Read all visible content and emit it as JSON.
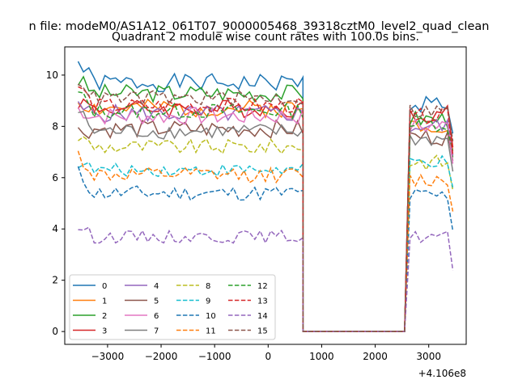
{
  "suptitle": "n file: modeM0/AS1A12_061T07_9000005468_39318cztM0_level2_quad_clean",
  "chart_data": {
    "type": "line",
    "title": "Quadrant 2 module wise count rates with 100.0s bins.",
    "xlabel": "",
    "ylabel": "",
    "x_offset_label": "+4.106e8",
    "xlim": [
      -3800,
      3700
    ],
    "ylim": [
      -0.5,
      11.1
    ],
    "x_ticks": [
      -3000,
      -2000,
      -1000,
      0,
      1000,
      2000,
      3000
    ],
    "x_tick_labels": [
      "−3000",
      "−2000",
      "−1000",
      "0",
      "1000",
      "2000",
      "3000"
    ],
    "y_ticks": [
      0,
      2,
      4,
      6,
      8,
      10
    ],
    "y_tick_labels": [
      "0",
      "2",
      "4",
      "6",
      "8",
      "10"
    ],
    "grid": false,
    "legend_placement": "lower-left",
    "legend_columns": 4,
    "segments": {
      "early": {
        "start": -3550,
        "step": 100,
        "count": 43
      },
      "gap_levels": [
        0.0,
        0.0
      ],
      "gap_x": [
        650,
        2550
      ],
      "late": {
        "start": 2650,
        "step": 100,
        "count": 9
      }
    },
    "series": [
      {
        "name": "0",
        "color": "#1f77b4",
        "dash": "solid",
        "base": 9.7,
        "pre": 10.5,
        "amp": 0.35,
        "late_base": 8.9,
        "seed": 1
      },
      {
        "name": "1",
        "color": "#ff7f0e",
        "dash": "solid",
        "base": 8.7,
        "pre": 9.0,
        "amp": 0.35,
        "late_base": 8.1,
        "seed": 2
      },
      {
        "name": "2",
        "color": "#2ca02c",
        "dash": "solid",
        "base": 9.3,
        "pre": 9.8,
        "amp": 0.35,
        "late_base": 8.3,
        "seed": 3
      },
      {
        "name": "3",
        "color": "#d62728",
        "dash": "solid",
        "base": 8.7,
        "pre": 9.0,
        "amp": 0.35,
        "late_base": 8.5,
        "seed": 4
      },
      {
        "name": "4",
        "color": "#9467bd",
        "dash": "solid",
        "base": 8.5,
        "pre": 8.7,
        "amp": 0.35,
        "late_base": 8.0,
        "seed": 5
      },
      {
        "name": "5",
        "color": "#8c564b",
        "dash": "solid",
        "base": 7.9,
        "pre": 7.8,
        "amp": 0.35,
        "late_base": 7.6,
        "seed": 6
      },
      {
        "name": "6",
        "color": "#e377c2",
        "dash": "solid",
        "base": 8.4,
        "pre": 8.7,
        "amp": 0.35,
        "late_base": 8.0,
        "seed": 7
      },
      {
        "name": "7",
        "color": "#7f7f7f",
        "dash": "solid",
        "base": 7.8,
        "pre": 8.6,
        "amp": 0.3,
        "late_base": 7.5,
        "seed": 8
      },
      {
        "name": "8",
        "color": "#bcbd22",
        "dash": "dashed",
        "base": 7.2,
        "pre": 7.6,
        "amp": 0.3,
        "late_base": 6.6,
        "seed": 9
      },
      {
        "name": "9",
        "color": "#17becf",
        "dash": "dashed",
        "base": 6.3,
        "pre": 6.6,
        "amp": 0.25,
        "late_base": 6.6,
        "seed": 10
      },
      {
        "name": "10",
        "color": "#1f77b4",
        "dash": "dashed",
        "base": 5.4,
        "pre": 6.2,
        "amp": 0.3,
        "late_base": 5.3,
        "seed": 11
      },
      {
        "name": "11",
        "color": "#ff7f0e",
        "dash": "dashed",
        "base": 6.1,
        "pre": 6.9,
        "amp": 0.3,
        "late_base": 5.9,
        "seed": 12
      },
      {
        "name": "12",
        "color": "#2ca02c",
        "dash": "dashed",
        "base": 8.6,
        "pre": 9.3,
        "amp": 0.3,
        "late_base": 8.1,
        "seed": 13
      },
      {
        "name": "13",
        "color": "#d62728",
        "dash": "dashed",
        "base": 8.8,
        "pre": 9.6,
        "amp": 0.3,
        "late_base": 8.4,
        "seed": 14
      },
      {
        "name": "14",
        "color": "#9467bd",
        "dash": "dashed",
        "base": 3.7,
        "pre": 4.1,
        "amp": 0.25,
        "late_base": 3.7,
        "seed": 15
      },
      {
        "name": "15",
        "color": "#8c564b",
        "dash": "dashed",
        "base": 9.1,
        "pre": 9.9,
        "amp": 0.3,
        "late_base": 8.6,
        "seed": 16
      }
    ]
  }
}
